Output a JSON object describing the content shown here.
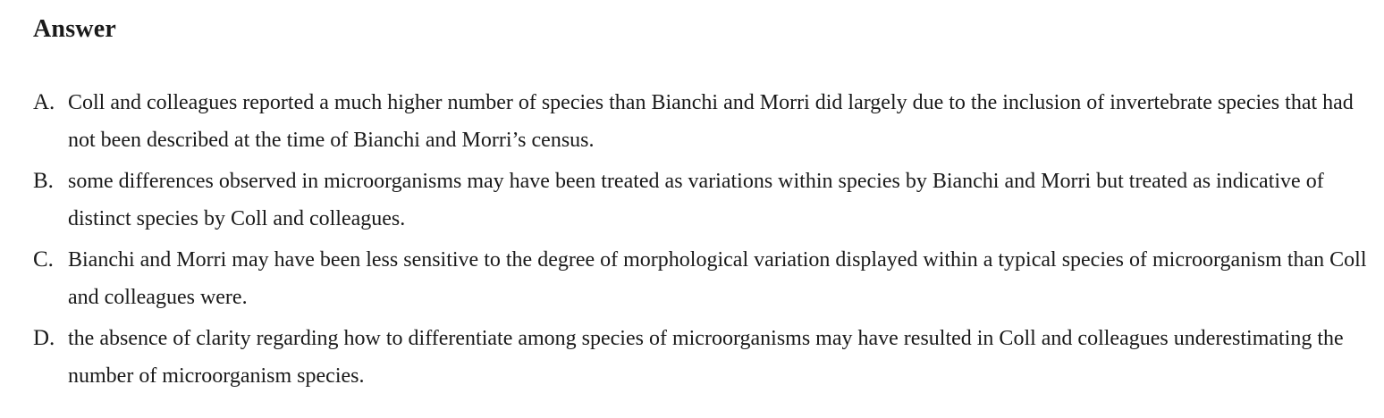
{
  "heading": "Answer",
  "options": [
    {
      "letter": "A.",
      "text": "Coll and colleagues reported a much higher number of species than Bianchi and Morri did largely due to the inclusion of invertebrate species that had not been described at the time of Bianchi and Morri’s census."
    },
    {
      "letter": "B.",
      "text": "some differences observed in microorganisms may have been treated as variations within species by Bianchi and Morri but treated as indicative of distinct species by Coll and colleagues."
    },
    {
      "letter": "C.",
      "text": "Bianchi and Morri may have been less sensitive to the degree of morphological variation displayed within a typical species of microorganism than Coll and colleagues were."
    },
    {
      "letter": "D.",
      "text": "the absence of clarity regarding how to differentiate among species of microorganisms may have resulted in Coll and colleagues underestimating the number of microorganism species."
    }
  ]
}
